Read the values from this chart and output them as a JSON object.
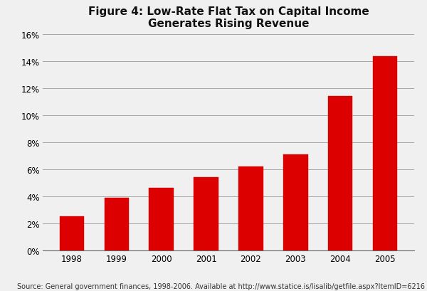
{
  "title": "Figure 4: Low-Rate Flat Tax on Capital Income\nGenerates Rising Revenue",
  "categories": [
    "1998",
    "1999",
    "2000",
    "2001",
    "2002",
    "2003",
    "2004",
    "2005"
  ],
  "values": [
    2.5,
    3.9,
    4.6,
    5.4,
    6.2,
    7.1,
    11.4,
    14.4
  ],
  "bar_color": "#dd0000",
  "bar_edge_color": "#cc0000",
  "ylim": [
    0,
    16
  ],
  "yticks": [
    0,
    2,
    4,
    6,
    8,
    10,
    12,
    14,
    16
  ],
  "background_color": "#f0f0f0",
  "plot_bg_color": "#f0f0f0",
  "grid_color": "#999999",
  "title_fontsize": 11,
  "tick_fontsize": 8.5,
  "source_text": "Source: General government finances, 1998-2006. Available at http://www.statice.is/lisalib/getfile.aspx?ItemID=6216",
  "source_fontsize": 7
}
